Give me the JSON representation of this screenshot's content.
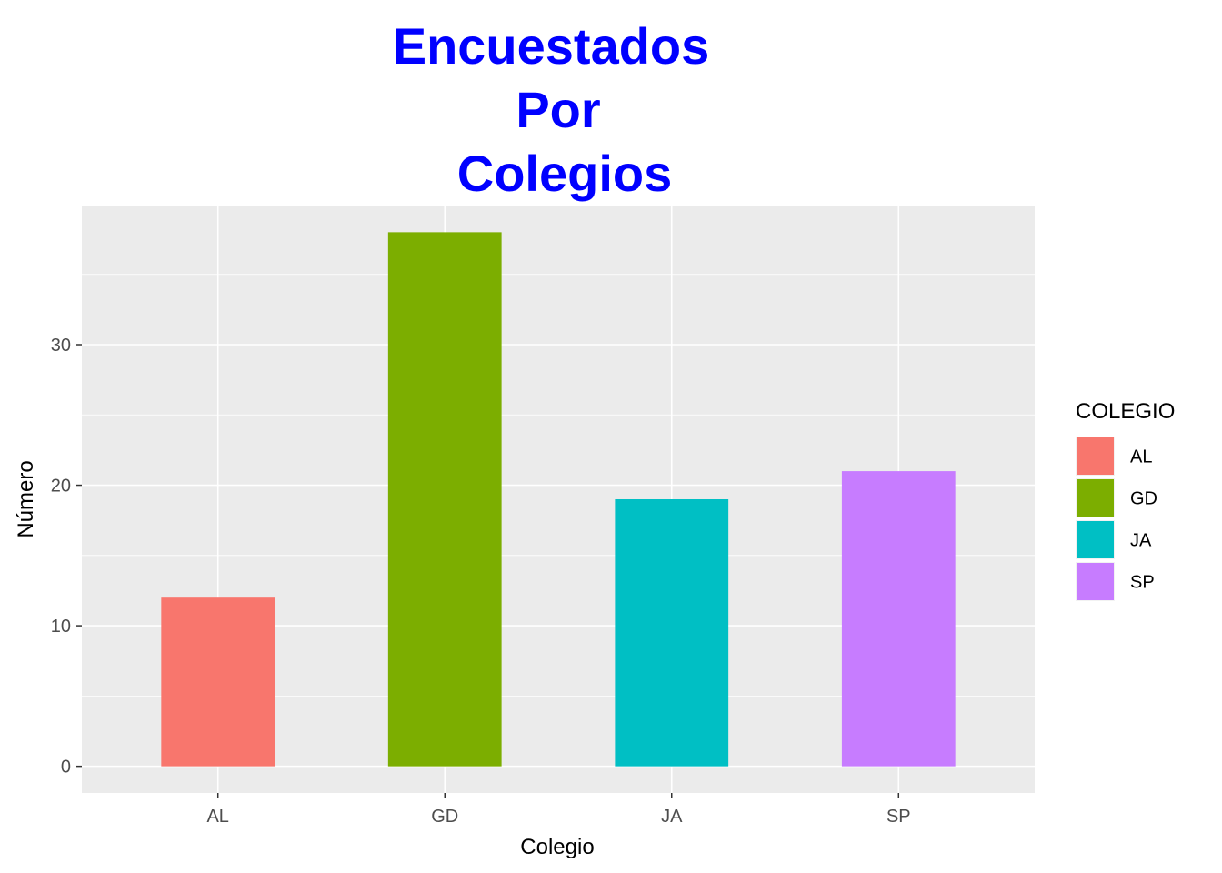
{
  "chart_data": {
    "type": "bar",
    "title_lines": [
      "Encuestados",
      "Por",
      "Colegios"
    ],
    "xlabel": "Colegio",
    "ylabel": "Número",
    "categories": [
      "AL",
      "GD",
      "JA",
      "SP"
    ],
    "values": [
      12,
      38,
      19,
      21
    ],
    "colors": [
      "#F8766D",
      "#7CAE00",
      "#00BFC4",
      "#C77CFF"
    ],
    "ylim": [
      -1.9,
      39.9
    ],
    "yticks": [
      0,
      10,
      20,
      30
    ],
    "ytick_labels": [
      "0",
      "10",
      "20",
      "30"
    ],
    "grid": true,
    "panel_background": "#EBEBEB",
    "legend": {
      "title": "COLEGIO",
      "position": "right",
      "entries": [
        "AL",
        "GD",
        "JA",
        "SP"
      ]
    }
  }
}
